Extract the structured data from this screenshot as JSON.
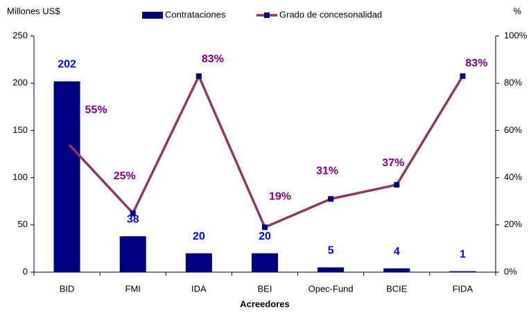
{
  "chart_data": {
    "type": "bar_line",
    "y_label": "Millones US$",
    "y2_label": "%",
    "x_label": "Acreedores",
    "categories": [
      "BID",
      "FMI",
      "IDA",
      "BEI",
      "Opec-Fund",
      "BCIE",
      "FIDA"
    ],
    "series": [
      {
        "name": "Contrataciones",
        "type": "bar",
        "color": "#000080",
        "label_color": "#0000ff",
        "values": [
          202,
          38,
          20,
          20,
          5,
          4,
          1
        ]
      },
      {
        "name": "Grado de concesonalidad",
        "type": "line",
        "axis": "y2",
        "color": "#8b3a62",
        "marker_color": "#000080",
        "label_color": "#800080",
        "values": [
          55,
          25,
          83,
          19,
          31,
          37,
          83
        ],
        "value_labels": [
          "55%",
          "25%",
          "83%",
          "19%",
          "31%",
          "37%",
          "83%"
        ]
      }
    ],
    "ylim": [
      0,
      250
    ],
    "yticks": [
      0,
      50,
      100,
      150,
      200,
      250
    ],
    "y2lim": [
      0,
      100
    ],
    "y2ticks": [
      {
        "value": 0,
        "label": "0%"
      },
      {
        "value": 20,
        "label": "20%"
      },
      {
        "value": 40,
        "label": "40%"
      },
      {
        "value": 60,
        "label": "60%"
      },
      {
        "value": 80,
        "label": "80%"
      },
      {
        "value": 100,
        "label": "100%"
      }
    ],
    "legend": "top"
  }
}
